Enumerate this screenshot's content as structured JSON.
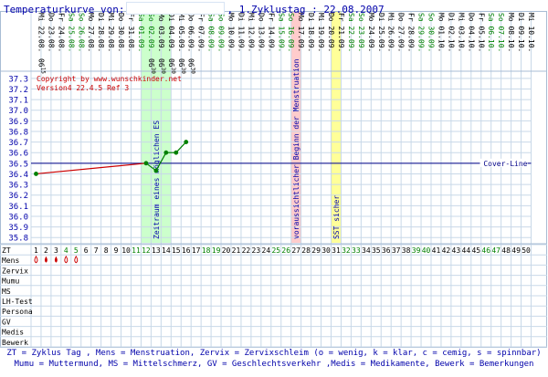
{
  "header": {
    "title_prefix": "Temperaturkurve von:",
    "title_suffix": ", 1.Zyklustag : 22.08.2007"
  },
  "copyright": "Copyright by www.wunschkinder.net",
  "version": "Version4 22.4.5 Ref 3",
  "colors": {
    "title": "#0000aa",
    "grid": "#c8d8e8",
    "temp_line": "#cc0000",
    "temp_points": "#008000",
    "coverline": "#000088",
    "fertile_band": "#ccffcc",
    "mens_band": "#ffcccc",
    "sst_band": "#ffff99",
    "weekend_text": "#008000"
  },
  "bands": {
    "fertile_label": "Zeitraum eines möglichen ES",
    "menstruation_label": "voraussichtlicher Beginn der Menstruation",
    "sst_label": "SST sicher"
  },
  "coverline_label": "Cover-Line",
  "row_labels": {
    "zt": "ZT",
    "mens": "Mens",
    "zervix": "Zervix",
    "mumu": "Mumu",
    "ms": "MS",
    "lh": "LH-Test",
    "persona": "Persona",
    "gv": "GV",
    "medis": "Medis",
    "bewerk": "Bewerk"
  },
  "legend": {
    "line1": "ZT = Zyklus Tag , Mens = Menstruation, Zervix = Zervixschleim (o = wenig, k = klar, c = cemig, s = spinnbar)",
    "line2": "Mumu = Muttermund, MS = Mittelschmerz, GV = Geschlechtsverkehr ,Medis = Medikamente, Bewerk = Bemerkungen"
  },
  "days": [
    {
      "zt": 1,
      "date": "Mi 22.08.",
      "we": false,
      "time": "06",
      "min": "15"
    },
    {
      "zt": 2,
      "date": "Do 23.08.",
      "we": false
    },
    {
      "zt": 3,
      "date": "Fr 24.08.",
      "we": false
    },
    {
      "zt": 4,
      "date": "Sa 25.08.",
      "we": true
    },
    {
      "zt": 5,
      "date": "So 26.08.",
      "we": true
    },
    {
      "zt": 6,
      "date": "Mo 27.08.",
      "we": false
    },
    {
      "zt": 7,
      "date": "Di 28.08.",
      "we": false
    },
    {
      "zt": 8,
      "date": "Mi 29.08.",
      "we": false
    },
    {
      "zt": 9,
      "date": "Do 30.08.",
      "we": false
    },
    {
      "zt": 10,
      "date": "Fr 31.08.",
      "we": false
    },
    {
      "zt": 11,
      "date": "Sa 01.09.",
      "we": true
    },
    {
      "zt": 12,
      "date": "So 02.09.",
      "we": true,
      "time": "06",
      "min": "30"
    },
    {
      "zt": 13,
      "date": "Mo 03.09.",
      "we": false,
      "time": "06",
      "min": "30"
    },
    {
      "zt": 14,
      "date": "Di 04.09.",
      "we": false,
      "time": "06",
      "min": "30"
    },
    {
      "zt": 15,
      "date": "Mi 05.09.",
      "we": false,
      "time": "06",
      "min": "30"
    },
    {
      "zt": 16,
      "date": "Do 06.09.",
      "we": false,
      "time": "06",
      "min": "30"
    },
    {
      "zt": 17,
      "date": "Fr 07.09.",
      "we": false
    },
    {
      "zt": 18,
      "date": "Sa 08.09.",
      "we": true
    },
    {
      "zt": 19,
      "date": "So 09.09.",
      "we": true
    },
    {
      "zt": 20,
      "date": "Mo 10.09.",
      "we": false
    },
    {
      "zt": 21,
      "date": "Di 11.09.",
      "we": false
    },
    {
      "zt": 22,
      "date": "Mi 12.09.",
      "we": false
    },
    {
      "zt": 23,
      "date": "Do 13.09.",
      "we": false
    },
    {
      "zt": 24,
      "date": "Fr 14.09.",
      "we": false
    },
    {
      "zt": 25,
      "date": "Sa 15.09.",
      "we": true
    },
    {
      "zt": 26,
      "date": "So 16.09.",
      "we": true
    },
    {
      "zt": 27,
      "date": "Mo 17.09.",
      "we": false
    },
    {
      "zt": 28,
      "date": "Di 18.09.",
      "we": false
    },
    {
      "zt": 29,
      "date": "Mi 19.09.",
      "we": false
    },
    {
      "zt": 30,
      "date": "Do 20.09.",
      "we": false
    },
    {
      "zt": 31,
      "date": "Fr 21.09.",
      "we": false
    },
    {
      "zt": 32,
      "date": "Sa 22.09.",
      "we": true
    },
    {
      "zt": 33,
      "date": "So 23.09.",
      "we": true
    },
    {
      "zt": 34,
      "date": "Mo 24.09.",
      "we": false
    },
    {
      "zt": 35,
      "date": "Di 25.09.",
      "we": false
    },
    {
      "zt": 36,
      "date": "Mi 26.09.",
      "we": false
    },
    {
      "zt": 37,
      "date": "Do 27.09.",
      "we": false
    },
    {
      "zt": 38,
      "date": "Fr 28.09.",
      "we": false
    },
    {
      "zt": 39,
      "date": "Sa 29.09.",
      "we": true
    },
    {
      "zt": 40,
      "date": "So 30.09.",
      "we": true
    },
    {
      "zt": 41,
      "date": "Mo 01.10.",
      "we": false
    },
    {
      "zt": 42,
      "date": "Di 02.10.",
      "we": false
    },
    {
      "zt": 43,
      "date": "Mi 03.10.",
      "we": false
    },
    {
      "zt": 44,
      "date": "Do 04.10.",
      "we": false
    },
    {
      "zt": 45,
      "date": "Fr 05.10.",
      "we": false
    },
    {
      "zt": 46,
      "date": "Sa 06.10.",
      "we": true
    },
    {
      "zt": 47,
      "date": "So 07.10.",
      "we": true
    },
    {
      "zt": 48,
      "date": "Mo 08.10.",
      "we": false
    },
    {
      "zt": 49,
      "date": "Di 09.10.",
      "we": false
    },
    {
      "zt": 50,
      "date": "Mi 10.10.",
      "we": false
    }
  ],
  "mens": [
    {
      "day": 1,
      "symbol": "o",
      "filled": false
    },
    {
      "day": 2,
      "symbol": "drop",
      "filled": true
    },
    {
      "day": 3,
      "symbol": "drop",
      "filled": true
    },
    {
      "day": 4,
      "symbol": "o",
      "filled": false
    },
    {
      "day": 5,
      "symbol": "o",
      "filled": false
    }
  ],
  "chart_data": {
    "type": "line",
    "title": "Temperaturkurve",
    "xlabel": "ZT",
    "ylabel": "",
    "ylim": [
      35.75,
      37.35
    ],
    "yticks": [
      35.8,
      35.9,
      36.0,
      36.1,
      36.2,
      36.3,
      36.4,
      36.5,
      36.6,
      36.7,
      36.8,
      36.9,
      37.0,
      37.1,
      37.2,
      37.3
    ],
    "x_range": [
      1,
      50
    ],
    "grid": true,
    "coverline": 36.5,
    "series": [
      {
        "points": [
          {
            "x": 1,
            "y": 36.4
          },
          {
            "x": 12,
            "y": 36.5
          },
          {
            "x": 13,
            "y": 36.43
          },
          {
            "x": 14,
            "y": 36.6
          },
          {
            "x": 15,
            "y": 36.6
          },
          {
            "x": 16,
            "y": 36.7
          }
        ]
      }
    ],
    "bands": [
      {
        "from": 12,
        "to": 14,
        "kind": "fertile"
      },
      {
        "from": 27,
        "to": 27,
        "kind": "menstruation"
      },
      {
        "from": 31,
        "to": 31,
        "kind": "sst"
      }
    ]
  }
}
